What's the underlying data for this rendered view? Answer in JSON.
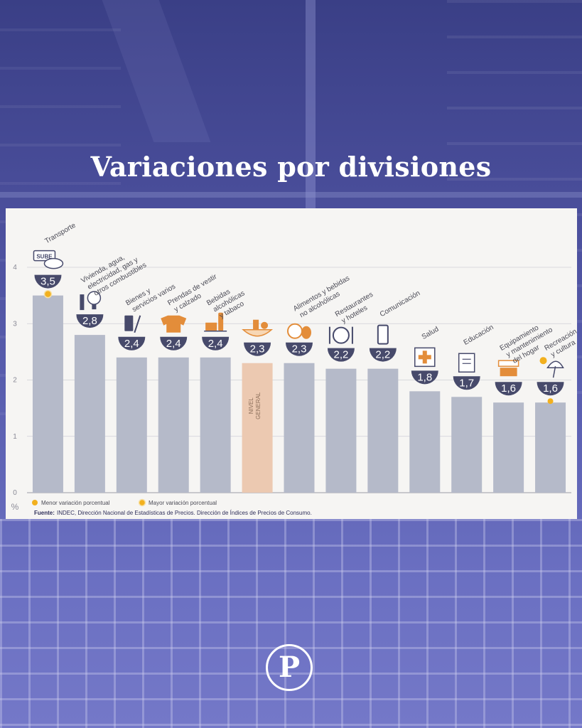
{
  "page": {
    "title": "Variaciones por divisiones",
    "logo_letter": "P"
  },
  "colors": {
    "bar": "#b5bac9",
    "bar_highlight": "#ecc9b1",
    "badge": "#474a6b",
    "icon_accent": "#e38d3a",
    "dot_min": "#f2b01e",
    "dot_max": "#f2b01e",
    "panel_bg": "#f6f5f3"
  },
  "chart_data": {
    "type": "bar",
    "title": "",
    "ylabel": "%",
    "ylim": [
      0,
      4
    ],
    "yticks": [
      0,
      1,
      2,
      3,
      4
    ],
    "grid": true,
    "categories": [
      "Transporte",
      "Vivienda, agua, electricidad, gas y otros combustibles",
      "Bienes y servicios varios",
      "Prendas de vestir y calzado",
      "Bebidas alcohólicas y tabaco",
      "",
      "Alimentos y bebidas no alcohólicas",
      "Restaurantes y hoteles",
      "Comunicación",
      "Salud",
      "Educación",
      "Equipamiento y mantenimiento del hogar",
      "Recreación y cultura"
    ],
    "category_lines": [
      [
        "Transporte"
      ],
      [
        "Vivienda, agua,",
        "electricidad, gas y",
        "otros combustibles"
      ],
      [
        "Bienes y",
        "servicios varios"
      ],
      [
        "Prendas de vestir",
        "y calzado"
      ],
      [
        "Bebidas",
        "alcohólicas",
        "y tabaco"
      ],
      [],
      [
        "Alimentos y bebidas",
        "no alcohólicas"
      ],
      [
        "Restaurantes",
        "y hoteles"
      ],
      [
        "Comunicación"
      ],
      [
        "Salud"
      ],
      [
        "Educación"
      ],
      [
        "Equipamiento",
        "y mantenimiento",
        "del hogar"
      ],
      [
        "Recreación",
        "y cultura"
      ]
    ],
    "values": [
      3.5,
      2.8,
      2.4,
      2.4,
      2.4,
      2.3,
      2.3,
      2.2,
      2.2,
      1.8,
      1.7,
      1.6,
      1.6
    ],
    "value_labels": [
      "3,5",
      "2,8",
      "2,4",
      "2,4",
      "2,4",
      "2,3",
      "2,3",
      "2,2",
      "2,2",
      "1,8",
      "1,7",
      "1,6",
      "1,6"
    ],
    "icons": [
      "sube-card-icon",
      "house-bulb-icon",
      "comb-scissors-icon",
      "clothes-icon",
      "bottles-icon",
      "basket-icon",
      "food-icon",
      "plate-cutlery-icon",
      "phone-icon",
      "medical-cross-icon",
      "notebook-icon",
      "appliance-icon",
      "umbrella-sun-icon"
    ],
    "highlight_index": 5,
    "highlight_label": [
      "NIVEL",
      "GENERAL"
    ],
    "markers": [
      {
        "index": 0,
        "type": "max"
      },
      {
        "index": 12,
        "type": "min"
      }
    ],
    "legend": [
      {
        "label": "Menor variación porcentual",
        "type": "min"
      },
      {
        "label": "Mayor variación porcentual",
        "type": "max"
      }
    ],
    "source_label": "Fuente:",
    "source_text": "INDEC, Dirección Nacional de Estadísticas de Precios. Dirección de Índices de Precios de Consumo."
  }
}
